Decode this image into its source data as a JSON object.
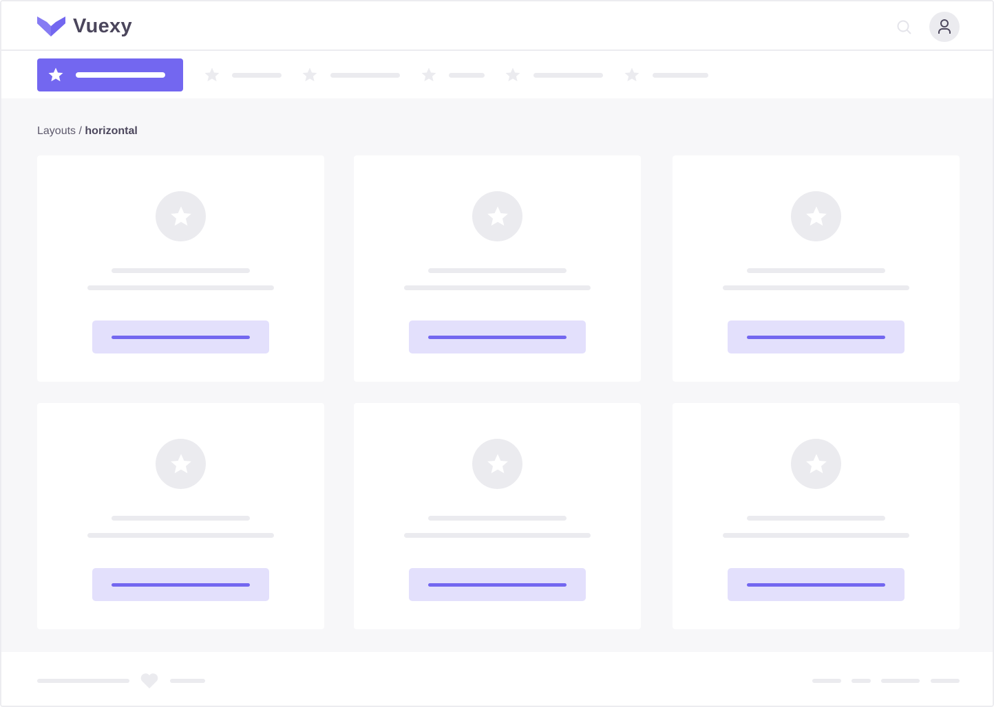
{
  "header": {
    "brand": "Vuexy",
    "logo_icon": "vuexy-logo",
    "search_icon": "search-icon",
    "avatar_icon": "user-icon"
  },
  "nav": {
    "items": [
      {
        "icon": "star-icon",
        "active": true
      },
      {
        "icon": "star-icon"
      },
      {
        "icon": "star-icon"
      },
      {
        "icon": "star-icon"
      },
      {
        "icon": "star-icon"
      },
      {
        "icon": "star-icon"
      }
    ]
  },
  "breadcrumb": {
    "parent": "Layouts",
    "separator": " / ",
    "current": "horizontal"
  },
  "colors": {
    "primary": "#7367f0",
    "primary_light": "#e3e0fc",
    "placeholder": "#ebebef",
    "background": "#f7f7f9",
    "text": "#4b465c"
  },
  "footer": {
    "icon": "heart-icon"
  }
}
